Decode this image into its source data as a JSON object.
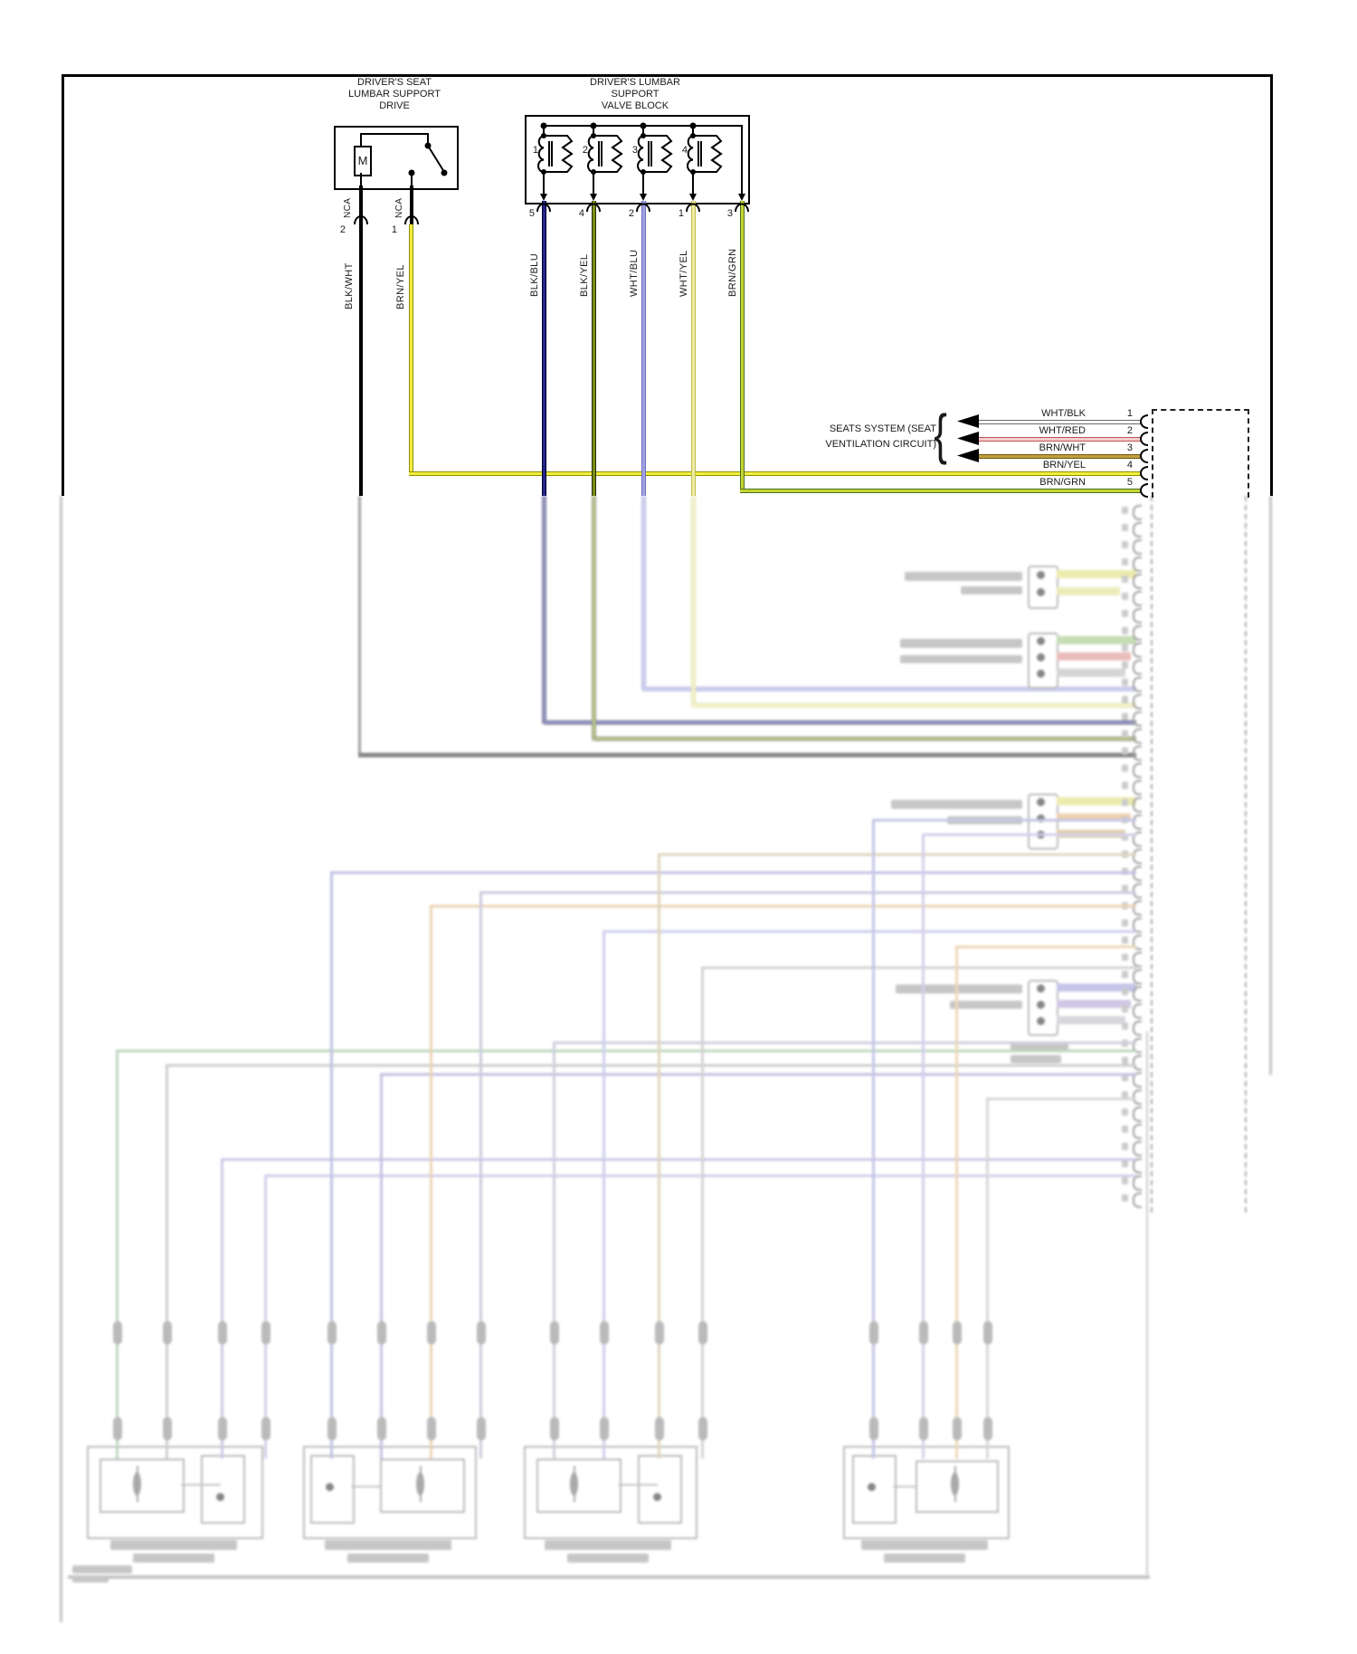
{
  "drive": {
    "title": [
      "DRIVER'S SEAT",
      "LUMBAR SUPPORT",
      "DRIVE"
    ],
    "motor": "M",
    "pins": [
      {
        "nca": "NCA",
        "num": "2",
        "label": "BLK/WHT"
      },
      {
        "nca": "NCA",
        "num": "1",
        "label": "BRN/YEL"
      }
    ]
  },
  "valve": {
    "title": [
      "DRIVER'S LUMBAR",
      "SUPPORT",
      "VALVE BLOCK"
    ],
    "units": [
      "1",
      "2",
      "3",
      "4"
    ],
    "pins": [
      {
        "num": "5",
        "label": "BLK/BLU"
      },
      {
        "num": "4",
        "label": "BLK/YEL"
      },
      {
        "num": "2",
        "label": "WHT/BLU"
      },
      {
        "num": "1",
        "label": "WHT/YEL"
      },
      {
        "num": "3",
        "label": "BRN/GRN"
      }
    ]
  },
  "seats": {
    "label": [
      "SEATS SYSTEM (SEAT",
      "VENTILATION CIRCUIT)"
    ],
    "brace": "{",
    "rows": [
      {
        "label": "WHT/BLK",
        "pin": "1"
      },
      {
        "label": "WHT/RED",
        "pin": "2"
      },
      {
        "label": "BRN/WHT",
        "pin": "3"
      },
      {
        "label": "BRN/YEL",
        "pin": "4"
      },
      {
        "label": "BRN/GRN",
        "pin": "5"
      }
    ]
  },
  "colors": {
    "blk_wht": "#111111",
    "brn_yel": "#f2ee3e",
    "blk_blu": "#26268c",
    "blk_yel": "#7c8c1a",
    "wht_blu": "#a2a2e0",
    "wht_yel": "#eeeca0",
    "brn_grn": "#c8d434",
    "wht_blk": "#6a6a6a",
    "wht_red": "#c25454",
    "brn_wht": "#bfa23e"
  }
}
